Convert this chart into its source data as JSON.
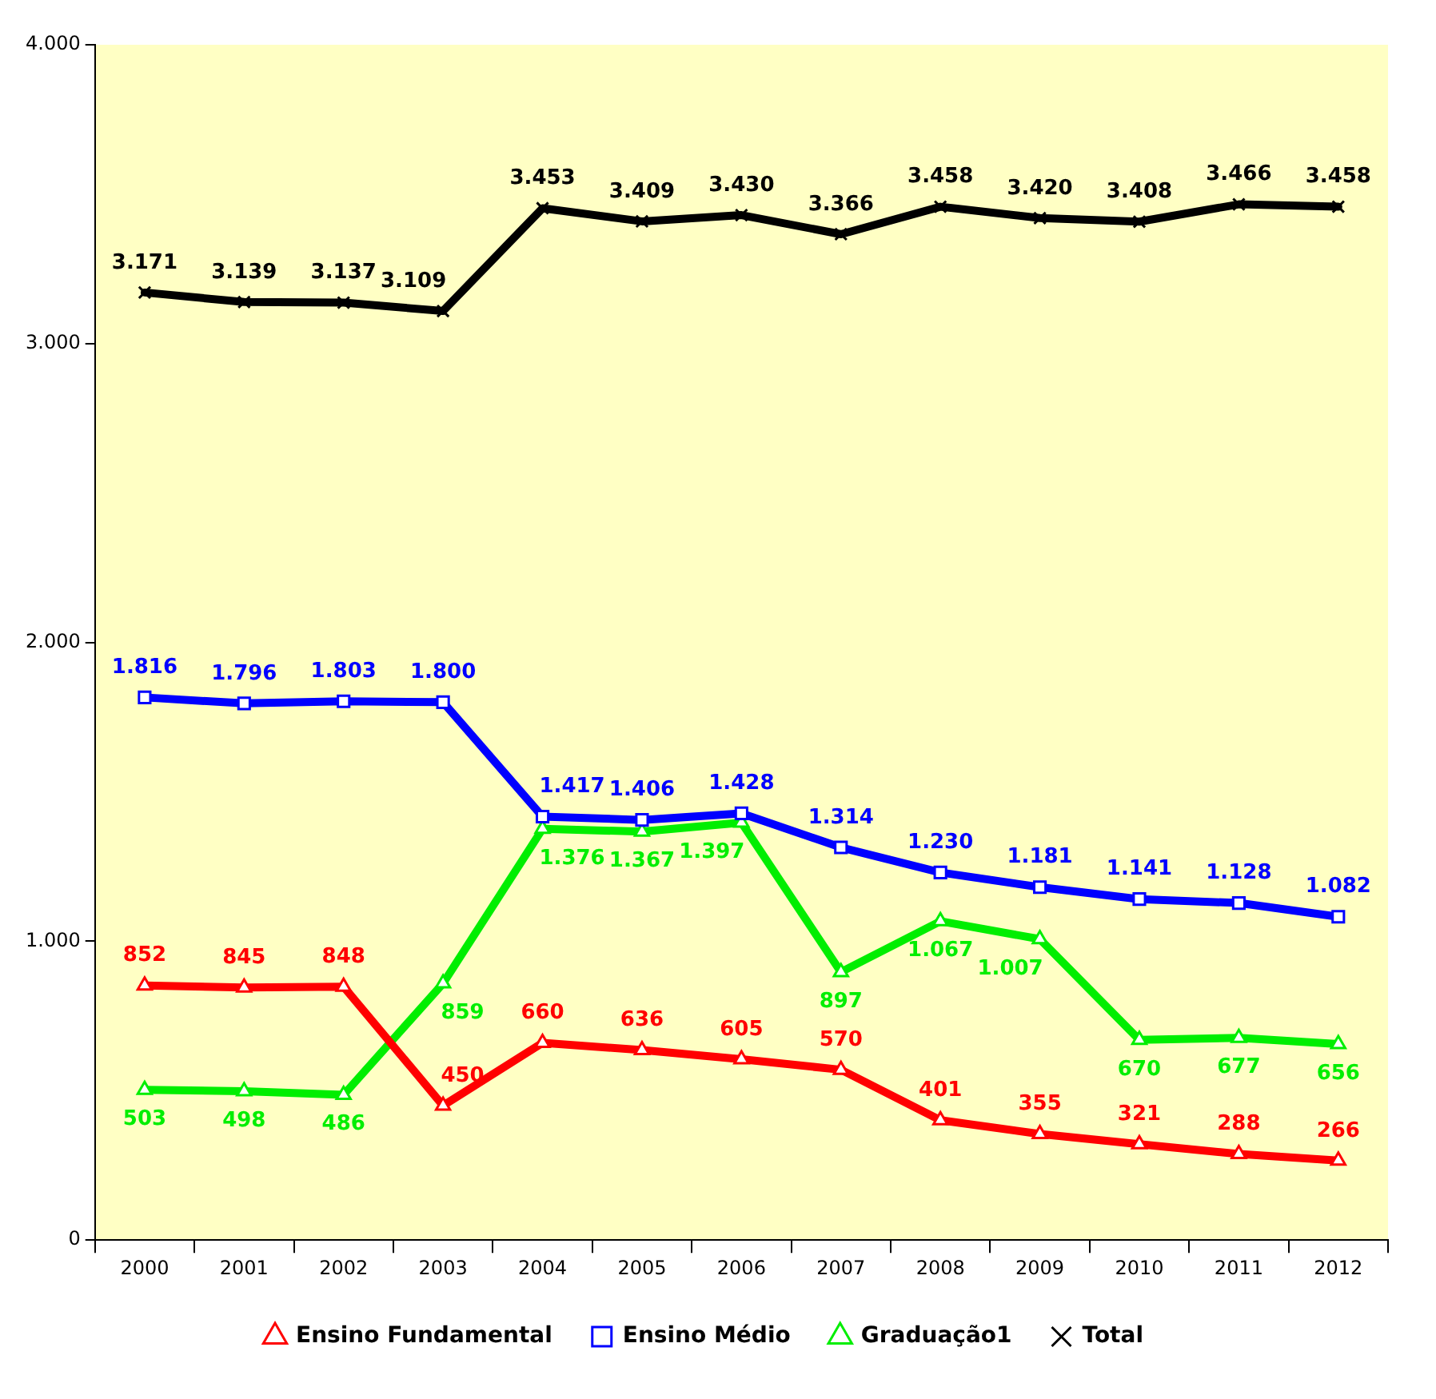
{
  "chart_data": {
    "type": "line",
    "categories": [
      "2000",
      "2001",
      "2002",
      "2003",
      "2004",
      "2005",
      "2006",
      "2007",
      "2008",
      "2009",
      "2010",
      "2011",
      "2012"
    ],
    "series": [
      {
        "name": "Ensino Fundamental",
        "color": "#ff0000",
        "marker": "triangle",
        "values": [
          852,
          845,
          848,
          450,
          660,
          636,
          605,
          570,
          401,
          355,
          321,
          288,
          266
        ],
        "value_labels": [
          "852",
          "845",
          "848",
          "450",
          "660",
          "636",
          "605",
          "570",
          "401",
          "355",
          "321",
          "288",
          "266"
        ]
      },
      {
        "name": "Ensino Médio",
        "color": "#0000ff",
        "marker": "square",
        "values": [
          1816,
          1796,
          1803,
          1800,
          1417,
          1406,
          1428,
          1314,
          1230,
          1181,
          1141,
          1128,
          1082
        ],
        "value_labels": [
          "1.816",
          "1.796",
          "1.803",
          "1.800",
          "1.417",
          "1.406",
          "1.428",
          "1.314",
          "1.230",
          "1.181",
          "1.141",
          "1.128",
          "1.082"
        ]
      },
      {
        "name": "Graduação1",
        "color": "#00ee00",
        "marker": "triangle",
        "values": [
          503,
          498,
          486,
          859,
          1376,
          1367,
          1397,
          897,
          1067,
          1007,
          670,
          677,
          656
        ],
        "value_labels": [
          "503",
          "498",
          "486",
          "859",
          "1.376",
          "1.367",
          "1.397",
          "897",
          "1.067",
          "1.007",
          "670",
          "677",
          "656"
        ]
      },
      {
        "name": "Total",
        "color": "#000000",
        "marker": "cross",
        "values": [
          3171,
          3139,
          3137,
          3109,
          3453,
          3409,
          3430,
          3366,
          3458,
          3420,
          3408,
          3466,
          3458
        ],
        "value_labels": [
          "3.171",
          "3.139",
          "3.137",
          "3.109",
          "3.453",
          "3.409",
          "3.430",
          "3.366",
          "3.458",
          "3.420",
          "3.408",
          "3.466",
          "3.458"
        ]
      }
    ],
    "ylim": [
      0,
      4000
    ],
    "yticks": [
      {
        "value": 0,
        "label": "0"
      },
      {
        "value": 1000,
        "label": "1.000"
      },
      {
        "value": 2000,
        "label": "2.000"
      },
      {
        "value": 3000,
        "label": "3.000"
      },
      {
        "value": 4000,
        "label": "4.000"
      }
    ],
    "grid": false,
    "legend": "bottom",
    "line_style": "solid"
  }
}
